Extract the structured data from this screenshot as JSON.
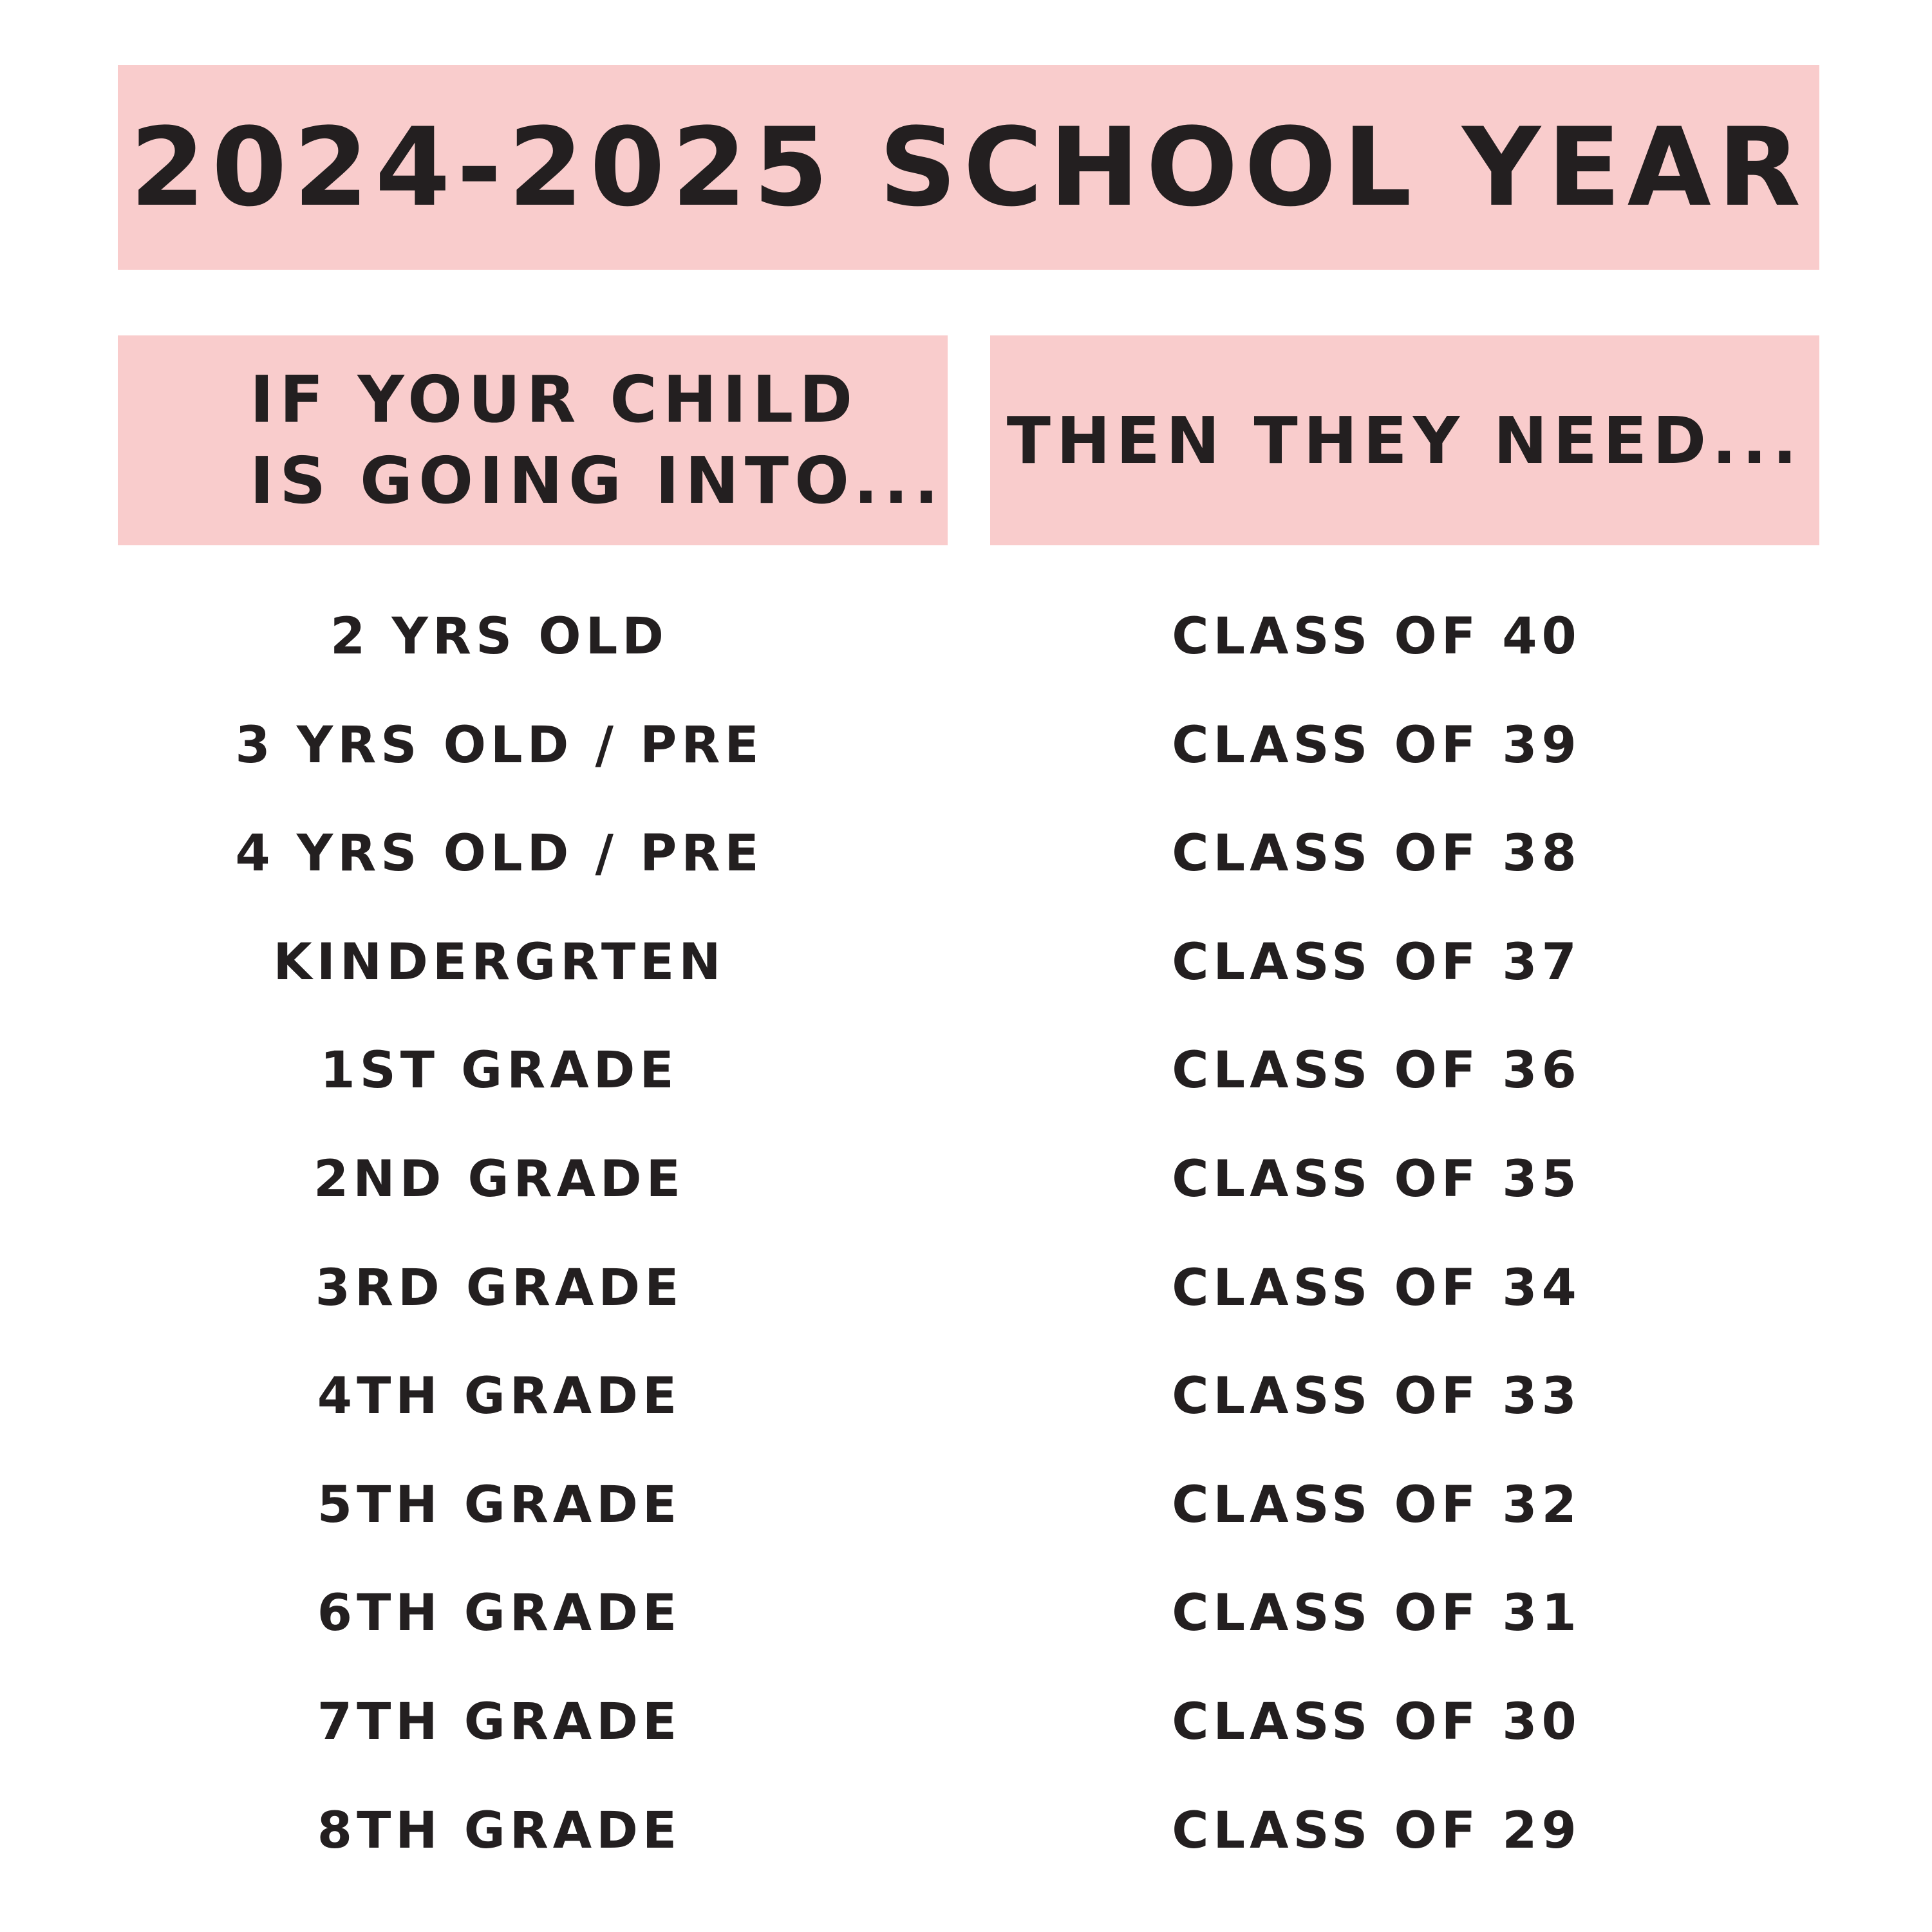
{
  "title": "2024-2025 SCHOOL YEAR",
  "header_left": [
    "IF YOUR CHILD",
    "IS GOING INTO..."
  ],
  "header_right": "THEN THEY NEED...",
  "rows": [
    {
      "grade": "2 YRS OLD",
      "class": "CLASS OF 40"
    },
    {
      "grade": "3 YRS OLD / PRE",
      "class": "CLASS OF 39"
    },
    {
      "grade": "4 YRS OLD / PRE",
      "class": "CLASS OF 38"
    },
    {
      "grade": "KINDERGRTEN",
      "class": "CLASS OF 37"
    },
    {
      "grade": "1ST GRADE",
      "class": "CLASS OF 36"
    },
    {
      "grade": "2ND GRADE",
      "class": "CLASS OF 35"
    },
    {
      "grade": "3RD GRADE",
      "class": "CLASS OF 34"
    },
    {
      "grade": "4TH GRADE",
      "class": "CLASS OF 33"
    },
    {
      "grade": "5TH GRADE",
      "class": "CLASS OF 32"
    },
    {
      "grade": "6TH GRADE",
      "class": "CLASS OF 31"
    },
    {
      "grade": "7TH GRADE",
      "class": "CLASS OF 30"
    },
    {
      "grade": "8TH GRADE",
      "class": "CLASS OF 29"
    }
  ],
  "colors": {
    "header_bg": "#f9cccc",
    "text": "#231f20"
  }
}
